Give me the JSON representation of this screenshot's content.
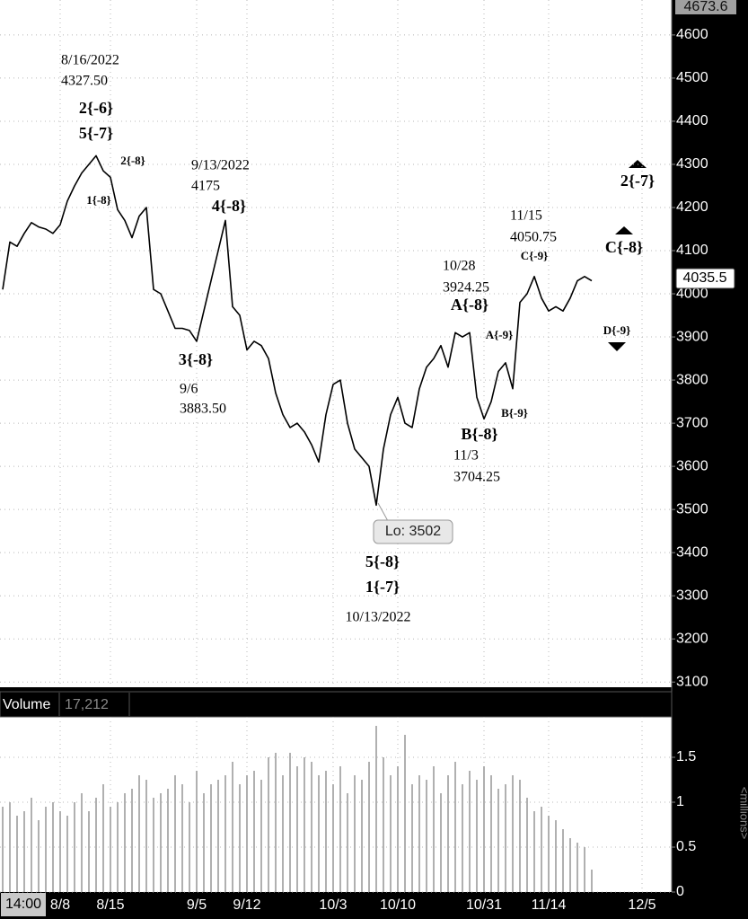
{
  "chart_data": [
    {
      "type": "line",
      "color": "#000000",
      "values": [
        4010,
        4120,
        4110,
        4140,
        4165,
        4155,
        4150,
        4140,
        4160,
        4215,
        4250,
        4280,
        4300,
        4320,
        4285,
        4270,
        4195,
        4170,
        4130,
        4180,
        4200,
        4010,
        4000,
        3960,
        3920,
        3920,
        3915,
        3890,
        3960,
        4030,
        4100,
        4170,
        3970,
        3950,
        3870,
        3890,
        3880,
        3850,
        3770,
        3720,
        3690,
        3700,
        3680,
        3650,
        3610,
        3720,
        3790,
        3800,
        3700,
        3640,
        3620,
        3600,
        3510,
        3640,
        3720,
        3760,
        3700,
        3690,
        3780,
        3830,
        3850,
        3880,
        3830,
        3910,
        3900,
        3910,
        3760,
        3710,
        3750,
        3820,
        3840,
        3780,
        3980,
        4000,
        4040,
        3990,
        3960,
        3970,
        3960,
        3990,
        4030,
        4040,
        4030,
        null,
        null,
        null,
        null,
        null,
        null,
        null
      ],
      "ylim": [
        3088,
        4681
      ],
      "yticks": [
        3100,
        3200,
        3300,
        3400,
        3500,
        3600,
        3700,
        3800,
        3900,
        4000,
        4100,
        4200,
        4300,
        4400,
        4500,
        4600
      ],
      "grid": true,
      "high_marker": 4673.6,
      "last_price": 4035.5,
      "annotations": [
        "8/16/2022",
        "4327.50",
        "2{-6}",
        "5{-7}",
        "2{-8}",
        "1{-8}",
        "9/13/2022",
        "4175",
        "4{-8}",
        "3{-8}",
        "9/6",
        "3883.50",
        "Lo: 3502",
        "5{-8}",
        "1{-7}",
        "10/13/2022",
        "10/28",
        "3924.25",
        "A{-8}",
        "A{-9}",
        "B{-9}",
        "B{-8}",
        "11/3",
        "3704.25",
        "11/15",
        "4050.75",
        "C{-9}",
        "2{-7}",
        "C{-8}",
        "D{-9}"
      ]
    },
    {
      "type": "bar",
      "title": "Volume",
      "readout": "17,212",
      "ylabel": "<millions>",
      "color": "#b0b0b0",
      "cursor_time": "14:00",
      "categories": [
        null,
        null,
        null,
        null,
        null,
        null,
        null,
        null,
        "8/8",
        null,
        null,
        null,
        null,
        null,
        null,
        "8/15",
        null,
        null,
        null,
        null,
        null,
        null,
        null,
        null,
        null,
        null,
        null,
        "9/5",
        null,
        null,
        null,
        null,
        null,
        null,
        "9/12",
        null,
        null,
        null,
        null,
        null,
        null,
        null,
        null,
        null,
        null,
        null,
        "10/3",
        null,
        null,
        null,
        null,
        null,
        null,
        null,
        null,
        "10/10",
        null,
        null,
        null,
        null,
        null,
        null,
        null,
        null,
        null,
        null,
        null,
        "10/31",
        null,
        null,
        null,
        null,
        null,
        null,
        null,
        null,
        "11/14",
        null,
        null,
        null,
        null,
        null,
        null,
        null,
        null,
        null,
        null,
        null,
        null,
        "12/5"
      ],
      "values": [
        0.95,
        1.0,
        0.85,
        0.9,
        1.05,
        0.8,
        0.95,
        1.0,
        0.9,
        0.85,
        1.0,
        1.1,
        0.9,
        1.05,
        1.2,
        0.95,
        1.0,
        1.1,
        1.15,
        1.3,
        1.25,
        1.05,
        1.1,
        1.15,
        1.3,
        1.2,
        1.0,
        1.35,
        1.1,
        1.2,
        1.25,
        1.3,
        1.45,
        1.2,
        1.3,
        1.35,
        1.25,
        1.5,
        1.55,
        1.3,
        1.55,
        1.4,
        1.5,
        1.45,
        1.3,
        1.35,
        1.2,
        1.4,
        1.1,
        1.3,
        1.25,
        1.45,
        1.85,
        1.5,
        1.3,
        1.4,
        1.75,
        1.2,
        1.3,
        1.25,
        1.4,
        1.1,
        1.3,
        1.45,
        1.2,
        1.35,
        1.25,
        1.4,
        1.3,
        1.15,
        1.2,
        1.3,
        1.25,
        1.05,
        0.9,
        0.95,
        0.85,
        0.8,
        0.7,
        0.6,
        0.55,
        0.5,
        0.25,
        null,
        null,
        null,
        null,
        null,
        null,
        null
      ],
      "ylim": [
        0,
        1.95
      ],
      "yticks": [
        0,
        0.5,
        1,
        1.5
      ],
      "grid": true
    }
  ]
}
